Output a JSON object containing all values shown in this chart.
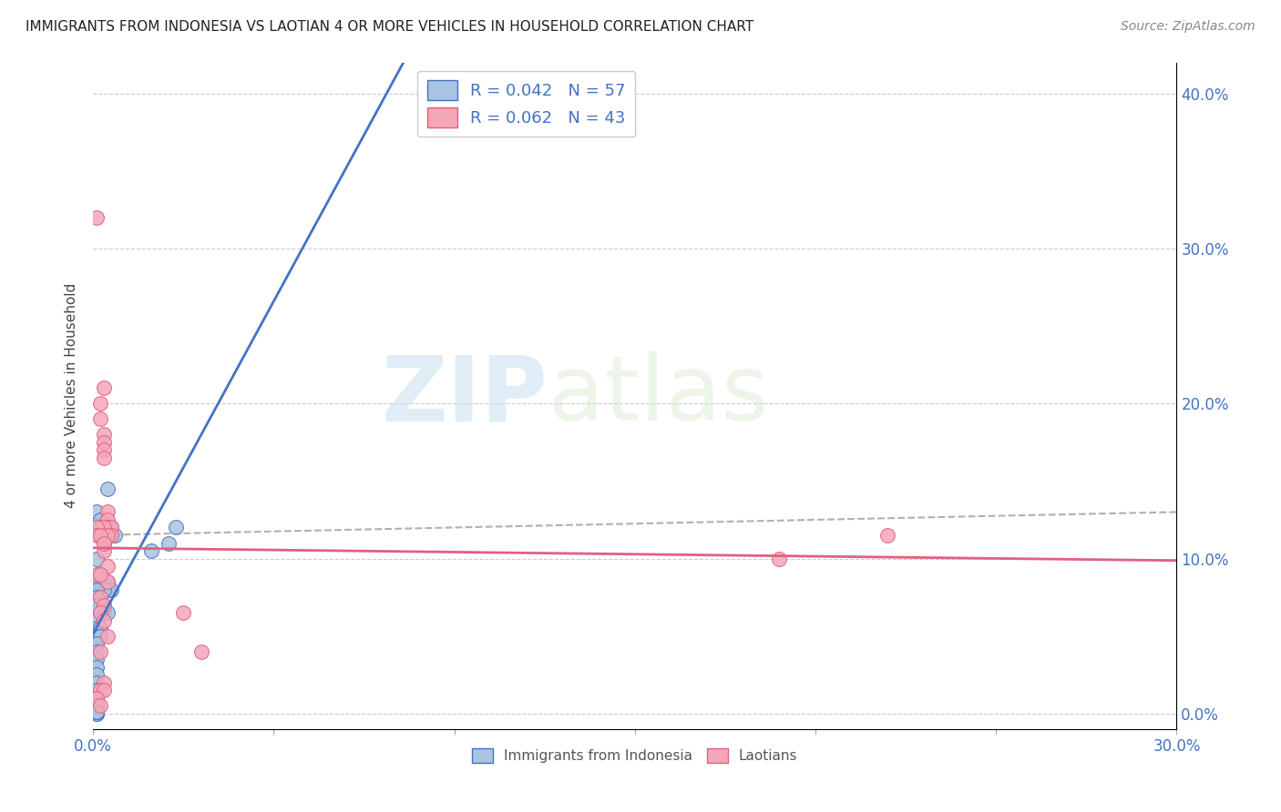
{
  "title": "IMMIGRANTS FROM INDONESIA VS LAOTIAN 4 OR MORE VEHICLES IN HOUSEHOLD CORRELATION CHART",
  "source": "Source: ZipAtlas.com",
  "ylabel": "4 or more Vehicles in Household",
  "yticks_right": [
    "0.0%",
    "10.0%",
    "20.0%",
    "30.0%",
    "40.0%"
  ],
  "ytick_values": [
    0.0,
    0.1,
    0.2,
    0.3,
    0.4
  ],
  "xlim": [
    0.0,
    0.3
  ],
  "ylim": [
    -0.01,
    0.42
  ],
  "legend_label1": "R = 0.042   N = 57",
  "legend_label2": "R = 0.062   N = 43",
  "legend_series1": "Immigrants from Indonesia",
  "legend_series2": "Laotians",
  "color_indonesia": "#a8c4e0",
  "color_laotian": "#f4a7b9",
  "color_indonesia_line": "#4472c4",
  "color_laotian_line": "#e06080",
  "color_text_blue": "#4472c4",
  "watermark_zip": "ZIP",
  "watermark_atlas": "atlas",
  "indonesia_x": [
    0.001,
    0.002,
    0.002,
    0.003,
    0.003,
    0.004,
    0.004,
    0.005,
    0.005,
    0.006,
    0.001,
    0.002,
    0.002,
    0.003,
    0.003,
    0.004,
    0.004,
    0.005,
    0.001,
    0.002,
    0.002,
    0.003,
    0.003,
    0.004,
    0.001,
    0.002,
    0.002,
    0.003,
    0.001,
    0.002,
    0.001,
    0.002,
    0.001,
    0.001,
    0.001,
    0.001,
    0.001,
    0.001,
    0.001,
    0.001,
    0.001,
    0.001,
    0.001,
    0.001,
    0.001,
    0.001,
    0.001,
    0.001,
    0.001,
    0.001,
    0.016,
    0.021,
    0.023,
    0.001,
    0.001,
    0.001,
    0.001
  ],
  "indonesia_y": [
    0.13,
    0.125,
    0.12,
    0.12,
    0.115,
    0.145,
    0.12,
    0.12,
    0.115,
    0.115,
    0.1,
    0.09,
    0.085,
    0.085,
    0.08,
    0.085,
    0.08,
    0.08,
    0.075,
    0.07,
    0.065,
    0.07,
    0.065,
    0.065,
    0.06,
    0.055,
    0.05,
    0.08,
    0.055,
    0.055,
    0.05,
    0.05,
    0.045,
    0.04,
    0.035,
    0.03,
    0.025,
    0.02,
    0.015,
    0.01,
    0.01,
    0.005,
    0.005,
    0.0,
    0.0,
    0.001,
    0.001,
    0.001,
    0.001,
    0.001,
    0.105,
    0.11,
    0.12,
    0.085,
    0.08,
    0.075,
    0.07
  ],
  "laotian_x": [
    0.001,
    0.002,
    0.002,
    0.003,
    0.003,
    0.003,
    0.003,
    0.004,
    0.004,
    0.004,
    0.004,
    0.005,
    0.005,
    0.002,
    0.003,
    0.003,
    0.003,
    0.004,
    0.004,
    0.002,
    0.003,
    0.002,
    0.003,
    0.004,
    0.002,
    0.003,
    0.002,
    0.003,
    0.001,
    0.002,
    0.003,
    0.001,
    0.004,
    0.001,
    0.002,
    0.003,
    0.001,
    0.002,
    0.003,
    0.19,
    0.22,
    0.025,
    0.03
  ],
  "laotian_y": [
    0.32,
    0.2,
    0.19,
    0.18,
    0.175,
    0.17,
    0.165,
    0.13,
    0.125,
    0.12,
    0.115,
    0.12,
    0.115,
    0.115,
    0.115,
    0.11,
    0.105,
    0.095,
    0.085,
    0.075,
    0.07,
    0.065,
    0.06,
    0.05,
    0.04,
    0.02,
    0.015,
    0.015,
    0.01,
    0.005,
    0.12,
    0.12,
    0.115,
    0.115,
    0.115,
    0.11,
    0.09,
    0.09,
    0.21,
    0.1,
    0.115,
    0.065,
    0.04
  ]
}
